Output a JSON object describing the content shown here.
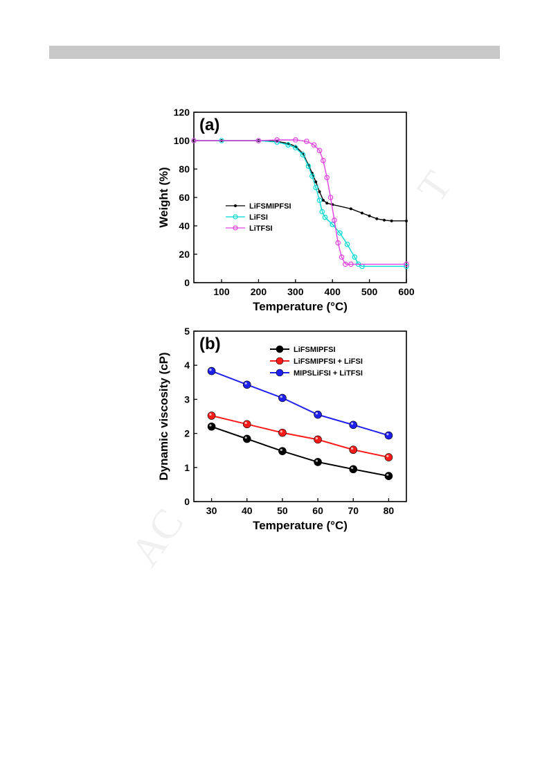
{
  "watermark": {
    "part1": "AC",
    "part2": "T"
  },
  "chart_data": [
    {
      "type": "line",
      "panel_label": "(a)",
      "xlabel": "Temperature (°C)",
      "ylabel": "Weight (%)",
      "xlim": [
        25,
        600
      ],
      "ylim": [
        0,
        120
      ],
      "xticks": [
        100,
        200,
        300,
        400,
        500,
        600
      ],
      "yticks": [
        0,
        20,
        40,
        60,
        80,
        100,
        120
      ],
      "legend_position": "center-left",
      "series": [
        {
          "name": "LiFSMIPFSI",
          "color": "#000000",
          "marker": "dot",
          "x": [
            25,
            100,
            200,
            250,
            280,
            300,
            320,
            335,
            345,
            355,
            365,
            375,
            385,
            400,
            450,
            480,
            500,
            520,
            540,
            560,
            600
          ],
          "y": [
            100,
            100,
            100,
            99.5,
            98,
            96,
            91,
            83,
            77,
            71,
            64,
            58,
            56,
            55,
            52,
            49,
            47,
            45,
            44,
            43.5,
            43.5
          ]
        },
        {
          "name": "LiFSI",
          "color": "#00d8d8",
          "marker": "open-circle",
          "x": [
            25,
            100,
            200,
            250,
            280,
            300,
            320,
            335,
            345,
            355,
            365,
            372,
            380,
            400,
            420,
            440,
            460,
            470,
            480,
            600
          ],
          "y": [
            100,
            100,
            100,
            99,
            97,
            95,
            90,
            82,
            75,
            67,
            58,
            50,
            46,
            41,
            35,
            27,
            18,
            13,
            11.5,
            11.5
          ]
        },
        {
          "name": "LiTFSI",
          "color": "#e040e0",
          "marker": "open-circle",
          "x": [
            25,
            200,
            250,
            300,
            330,
            350,
            365,
            375,
            385,
            395,
            405,
            415,
            425,
            435,
            450,
            600
          ],
          "y": [
            100,
            100,
            100.5,
            100.5,
            99.5,
            97,
            93,
            86,
            74,
            60,
            44,
            28,
            18,
            13,
            13,
            13
          ]
        }
      ]
    },
    {
      "type": "line",
      "panel_label": "(b)",
      "xlabel": "Temperature (°C)",
      "ylabel": "Dynamic viscosity (cP)",
      "xlim": [
        25,
        85
      ],
      "ylim": [
        0,
        5
      ],
      "xticks": [
        30,
        40,
        50,
        60,
        70,
        80
      ],
      "yticks": [
        0,
        1,
        2,
        3,
        4,
        5
      ],
      "legend_position": "top-right",
      "series": [
        {
          "name": "LiFSMIPFSI",
          "color": "#000000",
          "x": [
            30,
            40,
            50,
            60,
            70,
            80
          ],
          "y": [
            2.2,
            1.84,
            1.48,
            1.16,
            0.95,
            0.75
          ]
        },
        {
          "name": "LiFSMIPFSI + LiFSI",
          "color": "#ff1a1a",
          "x": [
            30,
            40,
            50,
            60,
            70,
            80
          ],
          "y": [
            2.52,
            2.27,
            2.02,
            1.82,
            1.52,
            1.3
          ]
        },
        {
          "name": "MIPSLiFSI + LiTFSI",
          "color": "#2020ee",
          "x": [
            30,
            40,
            50,
            60,
            70,
            80
          ],
          "y": [
            3.83,
            3.43,
            3.04,
            2.55,
            2.25,
            1.94
          ]
        }
      ]
    }
  ]
}
